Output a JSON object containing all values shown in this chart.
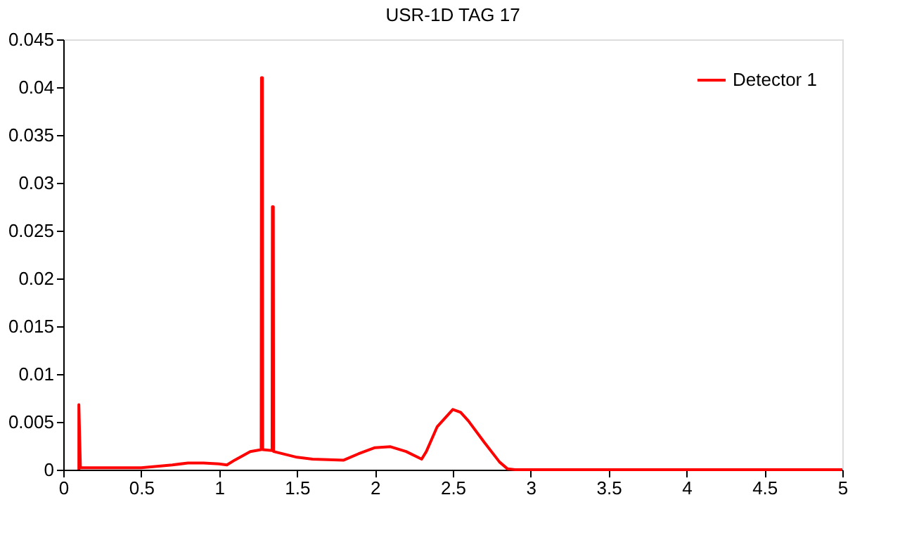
{
  "chart_data": {
    "type": "line",
    "title": "USR-1D TAG 17",
    "series": [
      {
        "name": "Detector 1",
        "color": "#ff0000",
        "x": [
          0.1,
          0.1,
          0.11,
          0.5,
          0.7,
          0.8,
          0.9,
          1.0,
          1.05,
          1.1,
          1.2,
          1.27,
          1.272,
          1.278,
          1.28,
          1.34,
          1.342,
          1.348,
          1.35,
          1.5,
          1.6,
          1.8,
          1.9,
          2.0,
          2.1,
          2.2,
          2.3,
          2.33,
          2.4,
          2.5,
          2.55,
          2.6,
          2.7,
          2.8,
          2.85,
          2.9,
          5.0
        ],
        "values": [
          0,
          0.0068,
          0.0002,
          0.0002,
          0.0005,
          0.0007,
          0.0007,
          0.0006,
          0.0005,
          0.001,
          0.0019,
          0.0021,
          0.041,
          0.041,
          0.0021,
          0.002,
          0.0275,
          0.0275,
          0.0019,
          0.0013,
          0.0011,
          0.001,
          0.0017,
          0.0023,
          0.0024,
          0.0019,
          0.0011,
          0.0019,
          0.0045,
          0.0063,
          0.006,
          0.0051,
          0.0029,
          0.0008,
          0.0001,
          0,
          0
        ]
      }
    ],
    "xlim": [
      0,
      5
    ],
    "xticks": [
      0,
      0.5,
      1,
      1.5,
      2,
      2.5,
      3,
      3.5,
      4,
      4.5,
      5
    ],
    "ylim": [
      0,
      0.045
    ],
    "yticks": [
      0,
      0.005,
      0.01,
      0.015,
      0.02,
      0.025,
      0.03,
      0.035,
      0.04,
      0.045
    ],
    "grid": false,
    "legend": "top right",
    "line_style": "solid",
    "marker": "none"
  }
}
